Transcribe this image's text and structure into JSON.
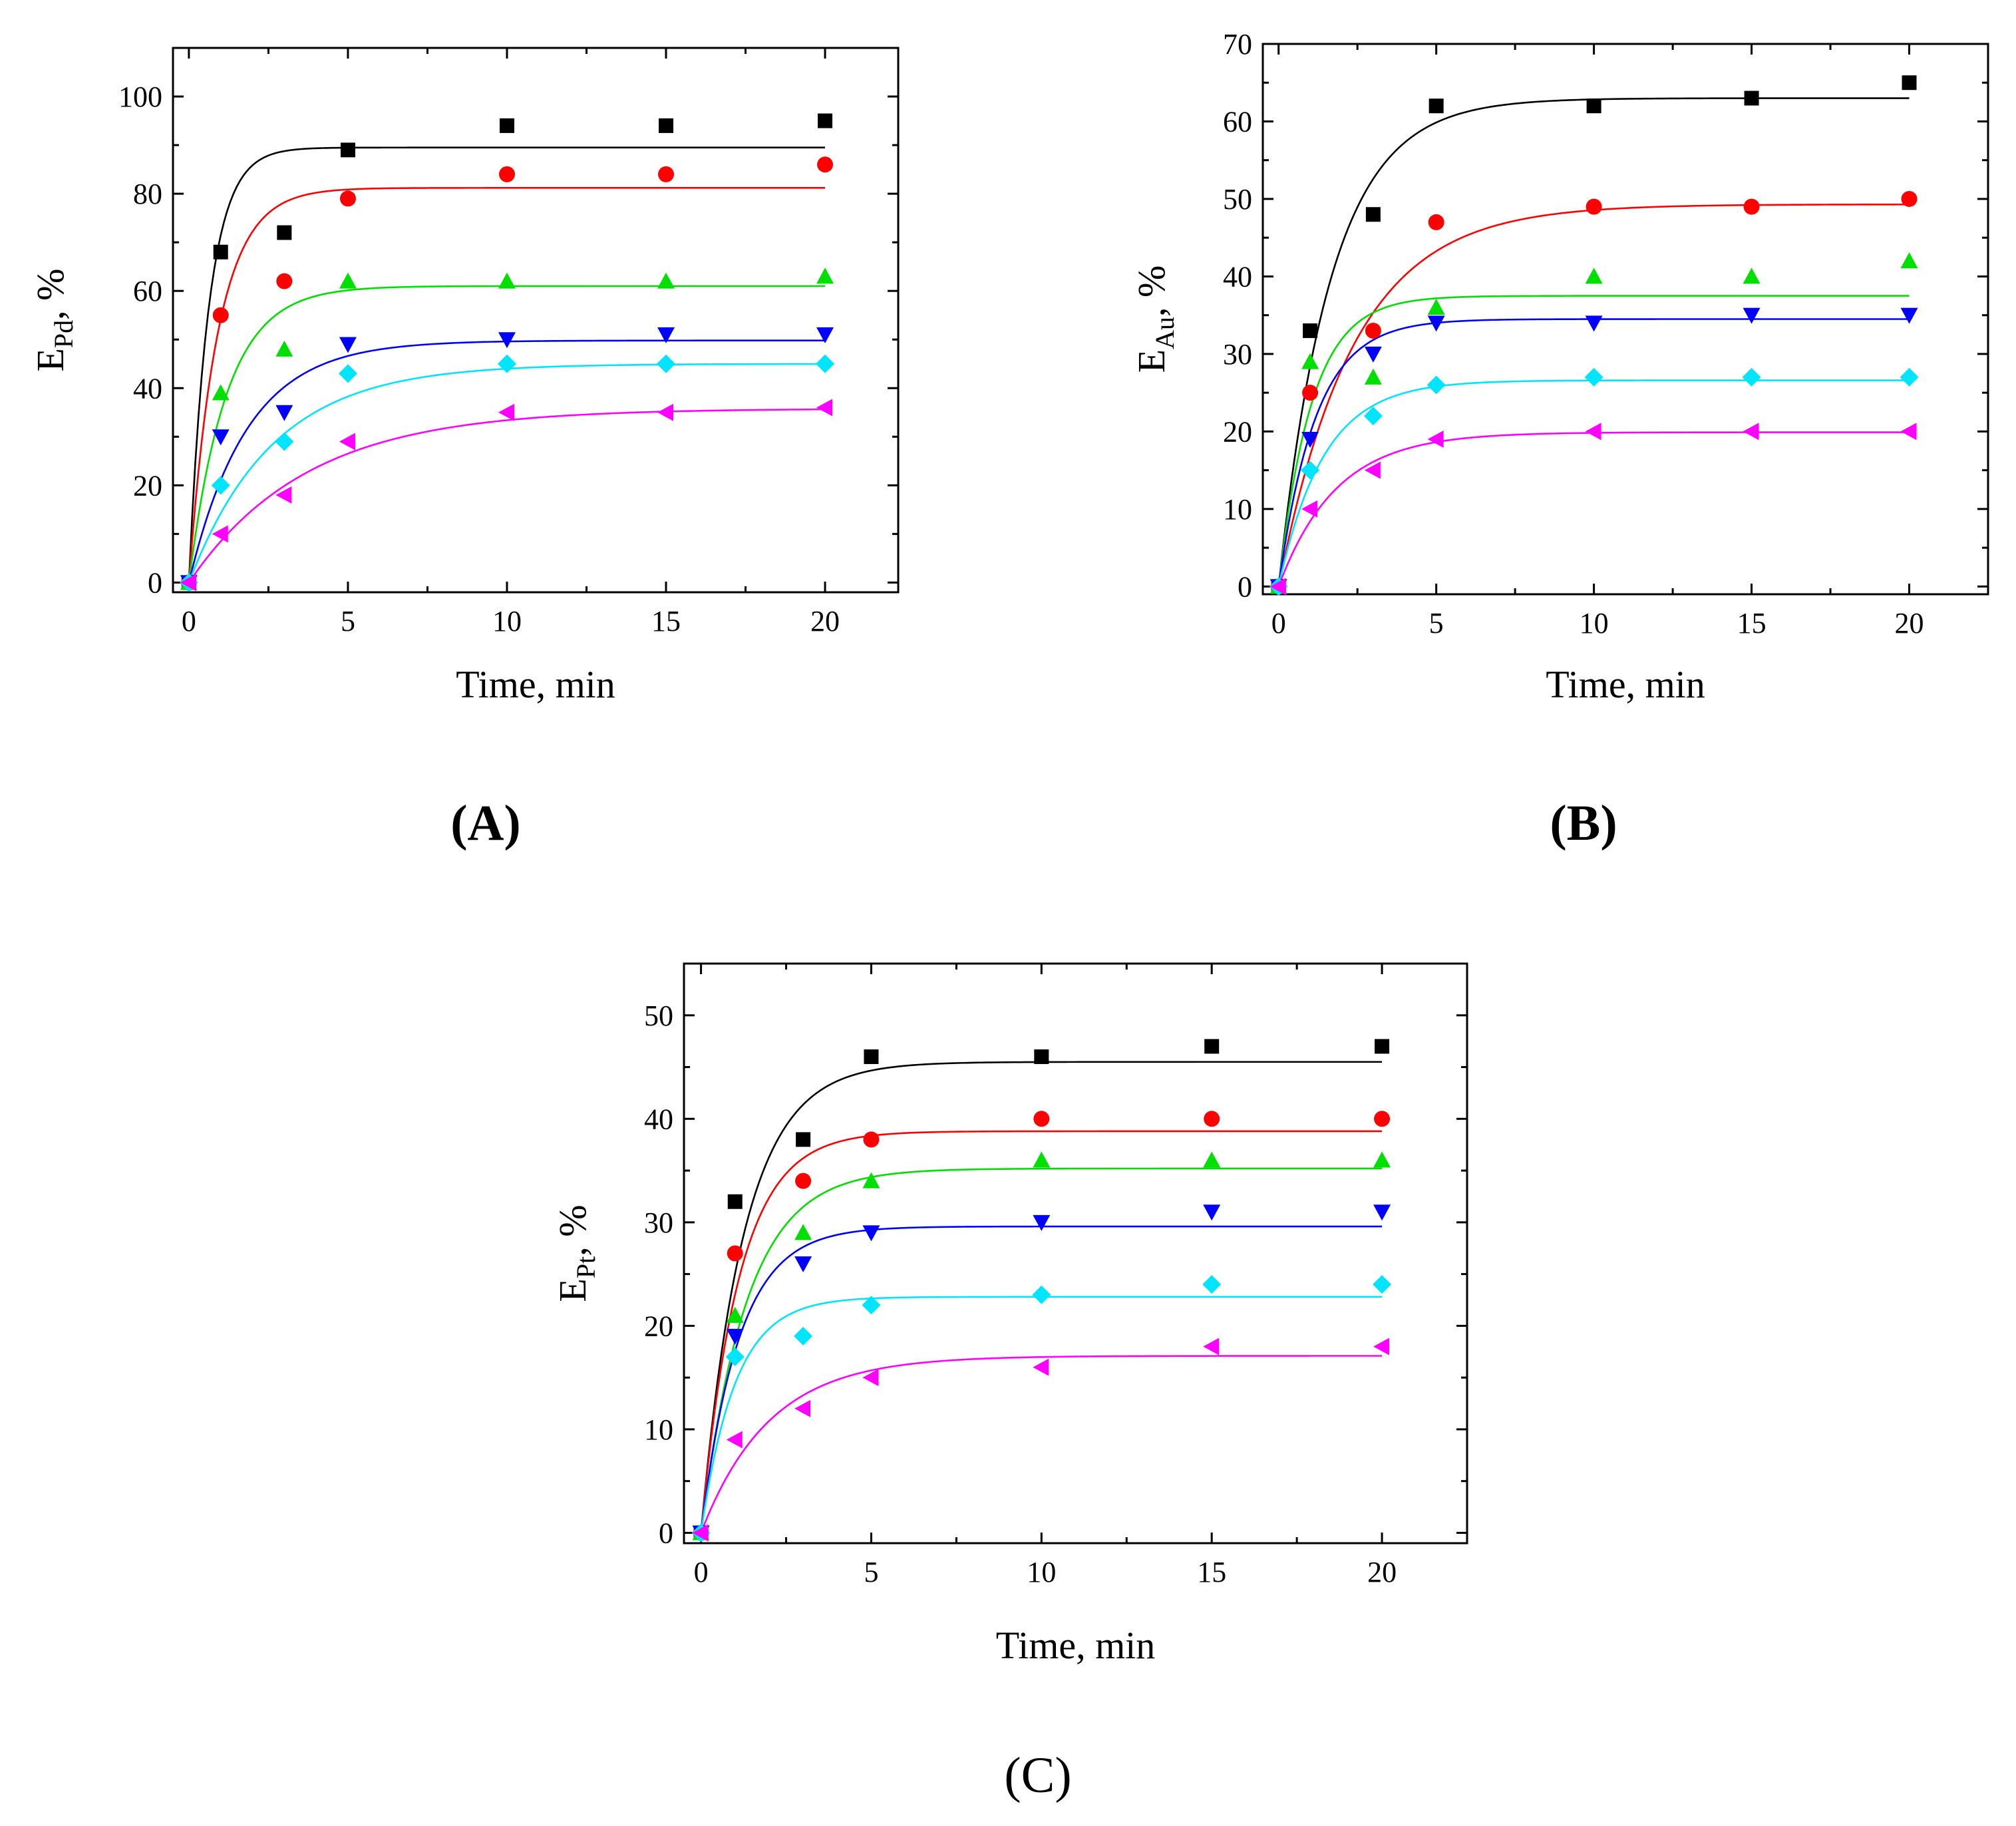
{
  "series_styles": [
    {
      "color": "#000000",
      "marker": "square"
    },
    {
      "color": "#ff0000",
      "marker": "circle"
    },
    {
      "color": "#00e000",
      "marker": "triangle-up"
    },
    {
      "color": "#0000ff",
      "marker": "triangle-down"
    },
    {
      "color": "#00e5ff",
      "marker": "diamond"
    },
    {
      "color": "#ff00ff",
      "marker": "triangle-left"
    }
  ],
  "chart_data": [
    {
      "panel": "(A)",
      "panel_bold": true,
      "type": "scatter",
      "xlabel": "Time, min",
      "ylabel": {
        "main": "E",
        "sub": "Pd",
        "suffix": ", %"
      },
      "xlim": [
        -0.5,
        22.3
      ],
      "ylim": [
        -2,
        110
      ],
      "xticks": [
        0,
        5,
        10,
        15,
        20
      ],
      "yticks": [
        0,
        20,
        40,
        60,
        80,
        100
      ],
      "x": [
        0,
        1,
        3,
        5,
        10,
        15,
        20
      ],
      "series": [
        {
          "values": [
            0,
            68,
            72,
            89,
            94,
            94,
            95
          ],
          "fit_plateau": 89.5,
          "fit_k": 1.6
        },
        {
          "values": [
            0,
            55,
            62,
            79,
            84,
            84,
            86
          ],
          "fit_plateau": 81.2,
          "fit_k": 1.1
        },
        {
          "values": [
            0,
            39,
            48,
            62,
            62,
            62,
            63
          ],
          "fit_plateau": 61,
          "fit_k": 0.85
        },
        {
          "values": [
            0,
            30,
            35,
            49,
            50,
            51,
            51
          ],
          "fit_plateau": 49.8,
          "fit_k": 0.55
        },
        {
          "values": [
            0,
            20,
            29,
            43,
            45,
            45,
            45
          ],
          "fit_plateau": 45,
          "fit_k": 0.38
        },
        {
          "values": [
            0,
            10,
            18,
            29,
            35,
            35,
            36
          ],
          "fit_plateau": 35.8,
          "fit_k": 0.27
        }
      ]
    },
    {
      "panel": "(B)",
      "panel_bold": true,
      "type": "scatter",
      "xlabel": "Time, min",
      "ylabel": {
        "main": "E",
        "sub": "Au",
        "suffix": ", %"
      },
      "xlim": [
        -0.5,
        22.5
      ],
      "ylim": [
        -1,
        70
      ],
      "xticks": [
        0,
        5,
        10,
        15,
        20
      ],
      "yticks": [
        0,
        10,
        20,
        30,
        40,
        50,
        60,
        70
      ],
      "x": [
        0,
        1,
        3,
        5,
        10,
        15,
        20
      ],
      "series": [
        {
          "values": [
            0,
            33,
            48,
            62,
            62,
            63,
            65
          ],
          "fit_plateau": 63,
          "fit_k": 0.6
        },
        {
          "values": [
            0,
            25,
            33,
            47,
            49,
            49,
            50
          ],
          "fit_plateau": 49.3,
          "fit_k": 0.42
        },
        {
          "values": [
            0,
            29,
            27,
            36,
            40,
            40,
            42
          ],
          "fit_plateau": 37.5,
          "fit_k": 0.95
        },
        {
          "values": [
            0,
            19,
            30,
            34,
            34,
            35,
            35
          ],
          "fit_plateau": 34.5,
          "fit_k": 0.85
        },
        {
          "values": [
            0,
            15,
            22,
            26,
            27,
            27,
            27
          ],
          "fit_plateau": 26.6,
          "fit_k": 0.7
        },
        {
          "values": [
            0,
            10,
            15,
            19,
            20,
            20,
            20
          ],
          "fit_plateau": 19.9,
          "fit_k": 0.55
        }
      ]
    },
    {
      "panel": "(C)",
      "panel_bold": false,
      "type": "scatter",
      "xlabel": "Time, min",
      "ylabel": {
        "main": "E",
        "sub": "Pt",
        "suffix": ", %"
      },
      "xlim": [
        -0.5,
        22.5
      ],
      "ylim": [
        -1,
        55
      ],
      "xticks": [
        0,
        5,
        10,
        15,
        20
      ],
      "yticks": [
        0,
        10,
        20,
        30,
        40,
        50
      ],
      "x": [
        0,
        1,
        3,
        5,
        10,
        15,
        20
      ],
      "series": [
        {
          "values": [
            0,
            32,
            38,
            46,
            46,
            47,
            47
          ],
          "fit_plateau": 45.5,
          "fit_k": 0.8
        },
        {
          "values": [
            0,
            27,
            34,
            38,
            40,
            40,
            40
          ],
          "fit_plateau": 38.8,
          "fit_k": 0.9
        },
        {
          "values": [
            0,
            21,
            29,
            34,
            36,
            36,
            36
          ],
          "fit_plateau": 35.2,
          "fit_k": 0.75
        },
        {
          "values": [
            0,
            19,
            26,
            29,
            30,
            31,
            31
          ],
          "fit_plateau": 29.6,
          "fit_k": 0.9
        },
        {
          "values": [
            0,
            17,
            19,
            22,
            23,
            24,
            24
          ],
          "fit_plateau": 22.8,
          "fit_k": 1.0
        },
        {
          "values": [
            0,
            9,
            12,
            15,
            16,
            18,
            18
          ],
          "fit_plateau": 17.1,
          "fit_k": 0.5
        }
      ]
    }
  ]
}
